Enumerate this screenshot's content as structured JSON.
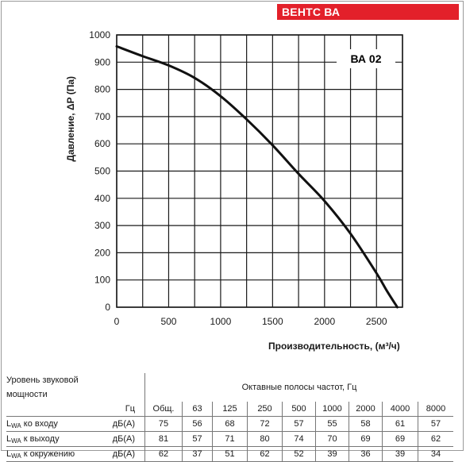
{
  "brand_label": "ВЕНТС ВА",
  "chart_data": {
    "type": "line",
    "title": "ВА 02",
    "xlabel": "Производительность, (м³/ч)",
    "ylabel": "Давление, ΔP (Па)",
    "xlim": [
      0,
      2750
    ],
    "ylim": [
      0,
      1000
    ],
    "x_ticks": [
      0,
      500,
      1000,
      1500,
      2000,
      2500
    ],
    "y_ticks": [
      0,
      100,
      200,
      300,
      400,
      500,
      600,
      700,
      800,
      900,
      1000
    ],
    "grid": true,
    "series": [
      {
        "x": [
          0,
          250,
          500,
          750,
          1000,
          1250,
          1500,
          1750,
          2000,
          2250,
          2500,
          2600,
          2700
        ],
        "y": [
          958,
          922,
          888,
          842,
          775,
          690,
          595,
          490,
          390,
          270,
          125,
          60,
          0
        ]
      }
    ]
  },
  "sound_table": {
    "title": "Уровень звуковой мощности",
    "bands_title": "Октавные полосы частот, Гц",
    "unit_header": "Гц",
    "columns": [
      "Общ.",
      "63",
      "125",
      "250",
      "500",
      "1000",
      "2000",
      "4000",
      "8000"
    ],
    "rows": [
      {
        "sub": "WA",
        "label": " ко входу",
        "unit": "дБ(А)",
        "values": [
          "75",
          "56",
          "68",
          "72",
          "57",
          "55",
          "58",
          "61",
          "57"
        ]
      },
      {
        "sub": "WA",
        "label": " к выходу",
        "unit": "дБ(А)",
        "values": [
          "81",
          "57",
          "71",
          "80",
          "74",
          "70",
          "69",
          "69",
          "62"
        ]
      },
      {
        "sub": "WA",
        "label": " к окружению",
        "unit": "дБ(А)",
        "values": [
          "62",
          "37",
          "51",
          "62",
          "52",
          "39",
          "36",
          "39",
          "34"
        ]
      }
    ]
  }
}
